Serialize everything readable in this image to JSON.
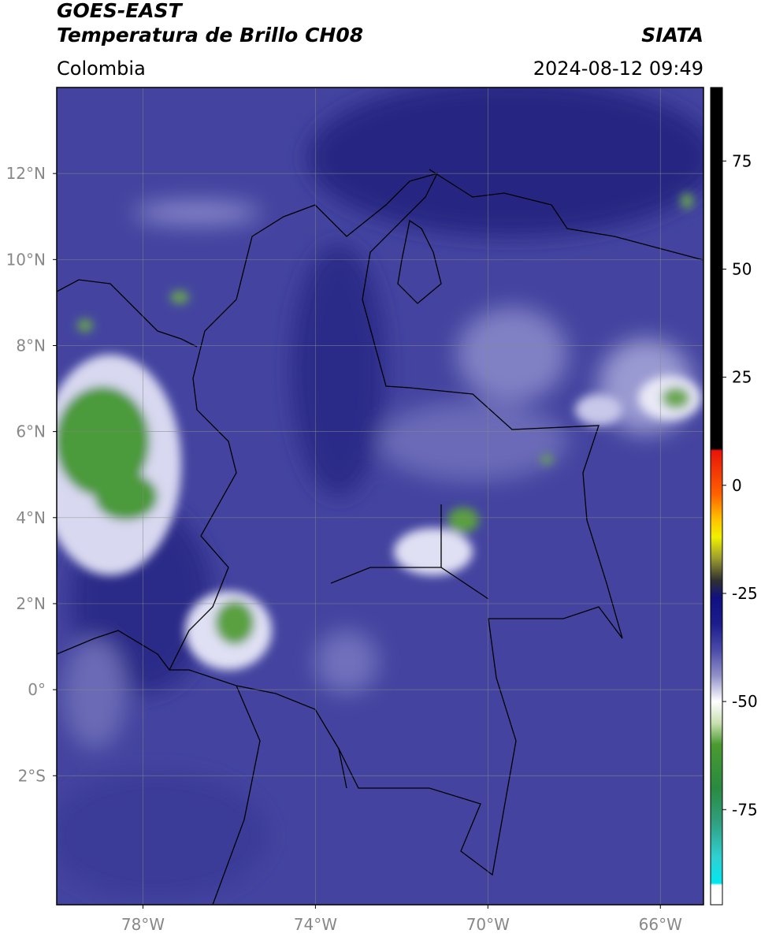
{
  "header": {
    "title": "GOES-EAST",
    "subtitle": "Temperatura de Brillo CH08",
    "source": "SIATA",
    "region": "Colombia",
    "datetime": "2024-08-12 09:49"
  },
  "map": {
    "xlim": [
      -80,
      -65
    ],
    "ylim": [
      -5,
      14
    ],
    "xticks": [
      {
        "value": -78,
        "label": "78°W"
      },
      {
        "value": -74,
        "label": "74°W"
      },
      {
        "value": -70,
        "label": "70°W"
      },
      {
        "value": -66,
        "label": "66°W"
      }
    ],
    "yticks": [
      {
        "value": 12,
        "label": "12°N"
      },
      {
        "value": 10,
        "label": "10°N"
      },
      {
        "value": 8,
        "label": "8°N"
      },
      {
        "value": 6,
        "label": "6°N"
      },
      {
        "value": 4,
        "label": "4°N"
      },
      {
        "value": 2,
        "label": "2°N"
      },
      {
        "value": 0,
        "label": "0°"
      },
      {
        "value": -2,
        "label": "2°S"
      }
    ],
    "grid": true
  },
  "colorbar": {
    "lim": [
      -97,
      92
    ],
    "ticks": [
      75,
      50,
      25,
      0,
      -25,
      -50,
      -75
    ],
    "stops": [
      {
        "value": 92,
        "color": "#000000"
      },
      {
        "value": 8.5,
        "color": "#000000"
      },
      {
        "value": 8,
        "color": "#e8140a"
      },
      {
        "value": -2,
        "color": "#ff6000"
      },
      {
        "value": -8,
        "color": "#ffc400"
      },
      {
        "value": -12,
        "color": "#f0f000"
      },
      {
        "value": -17,
        "color": "#9a9a30"
      },
      {
        "value": -22,
        "color": "#303030"
      },
      {
        "value": -26,
        "color": "#101080"
      },
      {
        "value": -32,
        "color": "#1c1c8c"
      },
      {
        "value": -38,
        "color": "#4a4aa8"
      },
      {
        "value": -44,
        "color": "#9090c8"
      },
      {
        "value": -50,
        "color": "#ffffff"
      },
      {
        "value": -55,
        "color": "#c8e0b0"
      },
      {
        "value": -60,
        "color": "#4a9a30"
      },
      {
        "value": -70,
        "color": "#2a8a40"
      },
      {
        "value": -78,
        "color": "#30a080"
      },
      {
        "value": -86,
        "color": "#30d0d0"
      },
      {
        "value": -92,
        "color": "#00e8f0"
      },
      {
        "value": -92.5,
        "color": "#ffffff"
      },
      {
        "value": -97,
        "color": "#ffffff"
      }
    ]
  }
}
